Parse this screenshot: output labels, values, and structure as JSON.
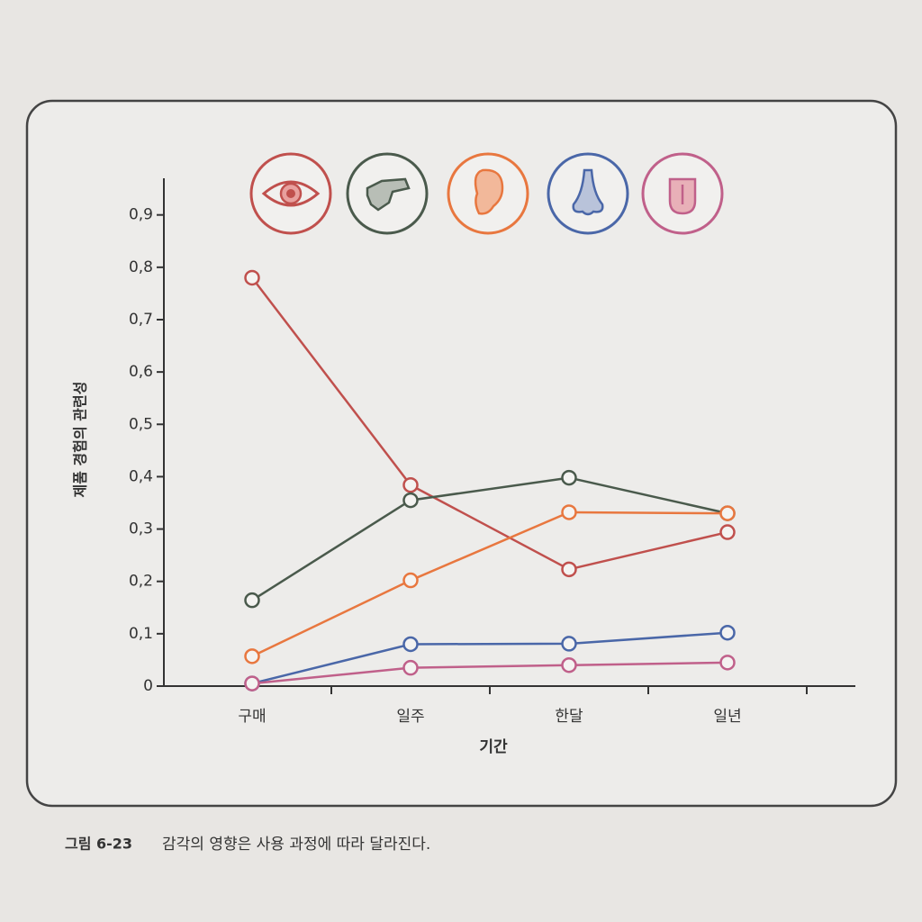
{
  "chart_data": {
    "type": "line",
    "y_label": "제품 경험의 관련성",
    "x_label": "기간",
    "categories": [
      "구매",
      "일주",
      "한달",
      "일년"
    ],
    "series": [
      {
        "color": "#c0504d",
        "values": [
          0.78,
          0.384,
          0.223,
          0.294
        ]
      },
      {
        "color": "#4a5a4c",
        "values": [
          0.164,
          0.355,
          0.398,
          0.33
        ]
      },
      {
        "color": "#e8773f",
        "values": [
          0.057,
          0.202,
          0.332,
          0.33
        ]
      },
      {
        "color": "#4a67a8",
        "values": [
          0.005,
          0.08,
          0.081,
          0.102
        ]
      },
      {
        "color": "#c0608a",
        "values": [
          0.005,
          0.035,
          0.04,
          0.045
        ]
      }
    ],
    "ylim": [
      0,
      0.97
    ],
    "yticks": [
      0,
      {
        "value": 0.1,
        "label": "0,1"
      },
      {
        "value": 0.2,
        "label": "0,2"
      },
      {
        "value": 0.3,
        "label": "0,3"
      },
      {
        "value": 0.4,
        "label": "0,4"
      },
      {
        "value": 0.5,
        "label": "0,5"
      },
      {
        "value": 0.6,
        "label": "0,6"
      },
      {
        "value": 0.7,
        "label": "0,7"
      },
      {
        "value": 0.8,
        "label": "0,8"
      },
      {
        "value": 0.9,
        "label": "0,9"
      }
    ],
    "caption_number": "그림 6-23",
    "caption_text": "감각의 영향은 사용 과정에 따라 달라진다."
  }
}
